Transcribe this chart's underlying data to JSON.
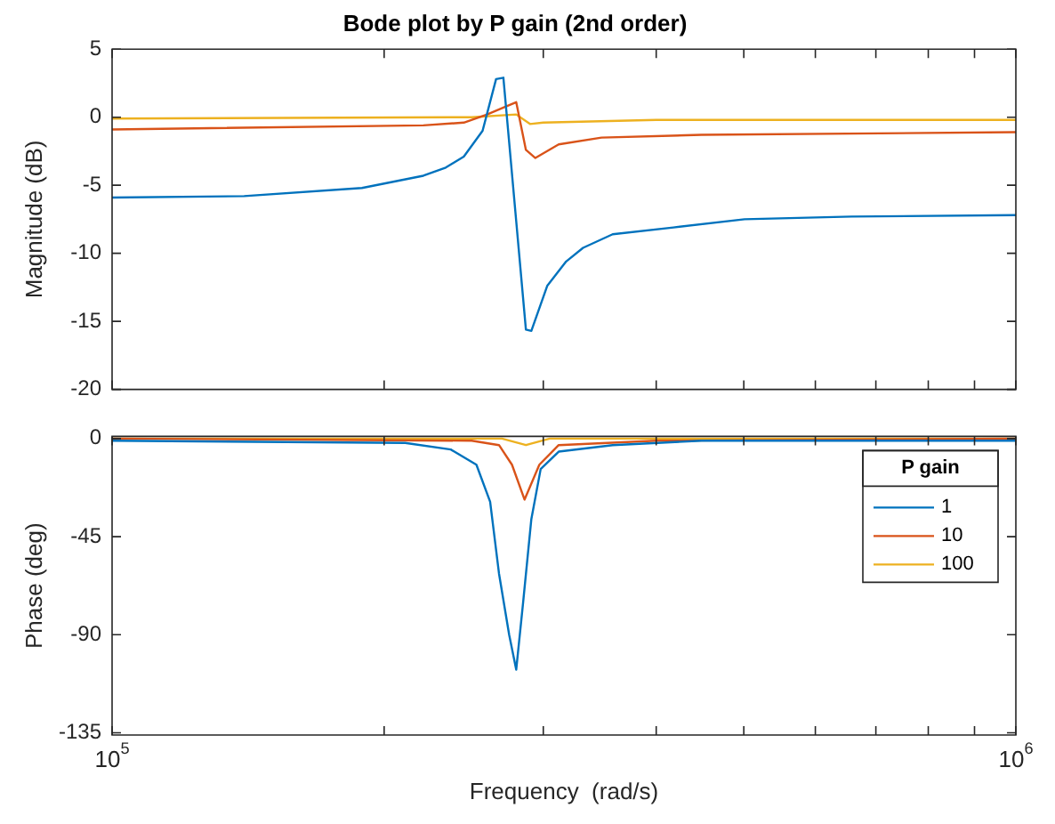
{
  "chart_data": [
    {
      "type": "line",
      "title": "Bode plot by P gain (2nd order)",
      "ylabel": "Magnitude (dB)",
      "log": "x",
      "grid": false,
      "tick_labels": "y",
      "xlim": [
        100000,
        1000000
      ],
      "xticks": [
        {
          "value": 100000,
          "label": null
        },
        {
          "value": 200000,
          "label": null
        },
        {
          "value": 300000,
          "label": null
        },
        {
          "value": 400000,
          "label": null
        },
        {
          "value": 500000,
          "label": null
        },
        {
          "value": 600000,
          "label": null
        },
        {
          "value": 700000,
          "label": null
        },
        {
          "value": 800000,
          "label": null
        },
        {
          "value": 900000,
          "label": null
        },
        {
          "value": 1000000,
          "label": null
        }
      ],
      "ylim": [
        -20,
        5
      ],
      "yticks": [
        -20,
        -15,
        -10,
        -5,
        0,
        5
      ],
      "series": [
        {
          "color": "#0072bd",
          "x": [
            100000,
            140000,
            189000,
            221000,
            234000,
            245000,
            257000,
            266000,
            271000,
            287000,
            291000,
            303000,
            318000,
            332000,
            358000,
            418000,
            501000,
            658000,
            1000000
          ],
          "values": [
            -5.9,
            -5.8,
            -5.2,
            -4.3,
            -3.7,
            -2.9,
            -1.0,
            2.8,
            2.9,
            -15.6,
            -15.7,
            -12.4,
            -10.6,
            -9.6,
            -8.6,
            -8.1,
            -7.5,
            -7.3,
            -7.2
          ]
        },
        {
          "color": "#d95319",
          "x": [
            100000,
            221000,
            245000,
            260000,
            271000,
            280000,
            287000,
            294000,
            312000,
            348000,
            449000,
            1000000
          ],
          "values": [
            -0.9,
            -0.6,
            -0.4,
            0.2,
            0.7,
            1.1,
            -2.4,
            -3.0,
            -2.0,
            -1.5,
            -1.3,
            -1.1
          ]
        },
        {
          "color": "#edb120",
          "x": [
            100000,
            250000,
            280000,
            290000,
            300000,
            400000,
            1000000
          ],
          "values": [
            -0.1,
            0,
            0.2,
            -0.5,
            -0.4,
            -0.2,
            -0.2
          ]
        }
      ]
    },
    {
      "type": "line",
      "ylabel": "Phase (deg)",
      "xlabel": "Frequency  (rad/s)",
      "log": "x",
      "grid": false,
      "legend": "top right",
      "legend_title": "P gain",
      "xlim": [
        100000,
        1000000
      ],
      "xticks": [
        {
          "value": 100000,
          "label": "10$^{5}$"
        },
        {
          "value": 200000,
          "label": null
        },
        {
          "value": 300000,
          "label": null
        },
        {
          "value": 400000,
          "label": null
        },
        {
          "value": 500000,
          "label": null
        },
        {
          "value": 600000,
          "label": null
        },
        {
          "value": 700000,
          "label": null
        },
        {
          "value": 800000,
          "label": null
        },
        {
          "value": 900000,
          "label": null
        },
        {
          "value": 1000000,
          "label": "10$^{6}$"
        }
      ],
      "ylim": [
        -136,
        1
      ],
      "yticks": [
        -135,
        -90,
        -45,
        0
      ],
      "series": [
        {
          "name": "1",
          "color": "#0072bd",
          "x": [
            100000,
            211000,
            237000,
            253000,
            262000,
            268000,
            275000,
            280000,
            285000,
            291000,
            298000,
            312000,
            358000,
            449000,
            1000000
          ],
          "values": [
            -1,
            -2,
            -5,
            -12,
            -29,
            -62,
            -90,
            -106,
            -75,
            -37,
            -14,
            -6,
            -3,
            -1,
            -1
          ]
        },
        {
          "name": "10",
          "color": "#d95319",
          "x": [
            100000,
            250000,
            268000,
            277000,
            286000,
            297000,
            312000,
            400000,
            1000000
          ],
          "values": [
            0,
            -1,
            -3,
            -12,
            -28,
            -12,
            -3,
            -1,
            0
          ]
        },
        {
          "name": "100",
          "color": "#edb120",
          "x": [
            100000,
            270000,
            287000,
            305000,
            1000000
          ],
          "values": [
            0,
            0,
            -3,
            0,
            0
          ]
        }
      ]
    }
  ]
}
